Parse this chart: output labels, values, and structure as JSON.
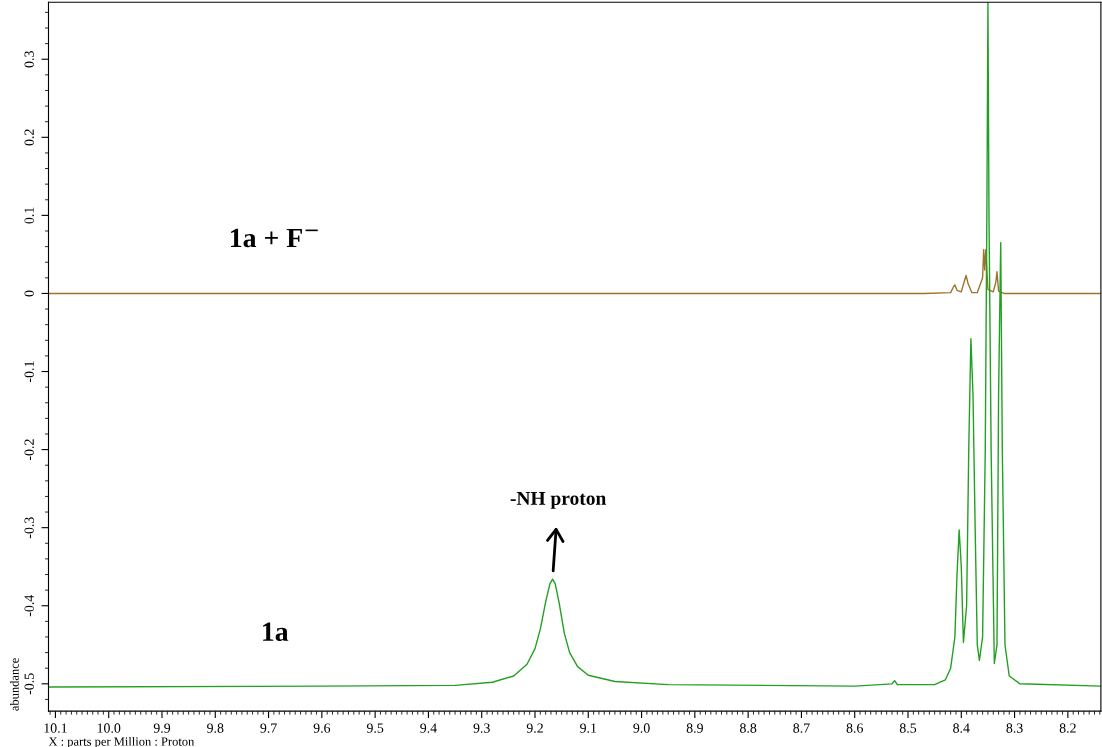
{
  "chart_data": {
    "type": "line",
    "xlabel": "X : parts per Million : Proton",
    "ylabel": "abundance",
    "xlim": [
      10.113,
      8.138
    ],
    "ylim": [
      -0.535,
      0.373
    ],
    "xticks": [
      10.1,
      {
        "value": 10.0,
        "label": "10.0"
      },
      9.9,
      9.8,
      9.7,
      9.6,
      9.5,
      9.4,
      9.3,
      9.2,
      9.1,
      {
        "value": 9.0,
        "label": "9.0"
      },
      8.9,
      8.8,
      8.7,
      8.6,
      8.5,
      8.4,
      8.3,
      8.2
    ],
    "yticks": [
      -0.5,
      -0.4,
      -0.3,
      -0.2,
      -0.1,
      0,
      0.1,
      0.2,
      0.3
    ],
    "grid": false,
    "legend": false,
    "marker": "none",
    "line_style": "solid",
    "annotations": [
      {
        "text": "-NH proton",
        "x": 9.167,
        "y": -0.366
      }
    ],
    "series": [
      {
        "name": "1a + F$^{−}$",
        "color": "#a0722e",
        "x": [
          10.113,
          8.47,
          8.42,
          8.415,
          8.412,
          8.408,
          8.4,
          8.395,
          8.391,
          8.387,
          8.38,
          8.37,
          8.36,
          8.358,
          8.356,
          8.354,
          8.35,
          8.34,
          8.335,
          8.333,
          8.33,
          8.32,
          8.138
        ],
        "values": [
          0,
          0,
          0.001,
          0.008,
          0.011,
          0.004,
          0.002,
          0.014,
          0.023,
          0.012,
          0.001,
          0.001,
          0.02,
          0.056,
          0.03,
          0.056,
          0.005,
          0.002,
          0.015,
          0.028,
          0.003,
          0,
          0
        ]
      },
      {
        "name": "1a",
        "color": "#22a022",
        "x": [
          10.113,
          9.6,
          9.35,
          9.28,
          9.24,
          9.215,
          9.2,
          9.19,
          9.18,
          9.172,
          9.167,
          9.162,
          9.155,
          9.145,
          9.135,
          9.12,
          9.1,
          9.05,
          8.95,
          8.6,
          8.53,
          8.525,
          8.52,
          8.45,
          8.43,
          8.42,
          8.412,
          8.408,
          8.404,
          8.4,
          8.396,
          8.39,
          8.386,
          8.382,
          8.378,
          8.374,
          8.37,
          8.366,
          8.36,
          8.355,
          8.352,
          8.35,
          8.348,
          8.344,
          8.338,
          8.333,
          8.33,
          8.326,
          8.323,
          8.318,
          8.31,
          8.29,
          8.138
        ],
        "values": [
          -0.504,
          -0.503,
          -0.502,
          -0.498,
          -0.49,
          -0.475,
          -0.455,
          -0.43,
          -0.395,
          -0.372,
          -0.366,
          -0.372,
          -0.395,
          -0.435,
          -0.46,
          -0.478,
          -0.489,
          -0.497,
          -0.501,
          -0.503,
          -0.5,
          -0.496,
          -0.501,
          -0.501,
          -0.495,
          -0.48,
          -0.44,
          -0.36,
          -0.303,
          -0.35,
          -0.447,
          -0.4,
          -0.2,
          -0.058,
          -0.13,
          -0.3,
          -0.45,
          -0.47,
          -0.44,
          -0.2,
          0.1,
          0.373,
          0.1,
          -0.2,
          -0.474,
          -0.45,
          -0.13,
          0.065,
          -0.2,
          -0.45,
          -0.49,
          -0.5,
          -0.503
        ]
      }
    ]
  }
}
